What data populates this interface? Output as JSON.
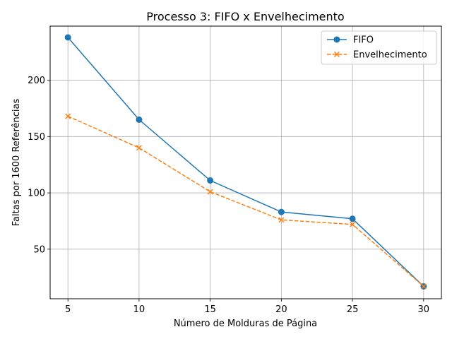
{
  "chart_data": {
    "type": "line",
    "title": "Processo 3: FIFO x Envelhecimento",
    "xlabel": "Número de Molduras de Página",
    "ylabel": "Faltas por 1600 Referências",
    "x": [
      5,
      10,
      15,
      20,
      25,
      30
    ],
    "x_ticks": [
      "5",
      "10",
      "15",
      "20",
      "25",
      "30"
    ],
    "y_ticks": [
      "50",
      "100",
      "150",
      "200"
    ],
    "y_tick_values": [
      50,
      100,
      150,
      200
    ],
    "xlim": [
      3.75,
      31.25
    ],
    "ylim": [
      6,
      248
    ],
    "grid": true,
    "legend_position": "top-right",
    "series": [
      {
        "name": "FIFO",
        "values": [
          238,
          165,
          111,
          83,
          77,
          17
        ],
        "color": "#1f77b4",
        "marker": "circle",
        "linestyle": "solid"
      },
      {
        "name": "Envelhecimento",
        "values": [
          168,
          140,
          101,
          76,
          72,
          17
        ],
        "color": "#ff7f0e",
        "marker": "x",
        "linestyle": "dashed"
      }
    ]
  }
}
